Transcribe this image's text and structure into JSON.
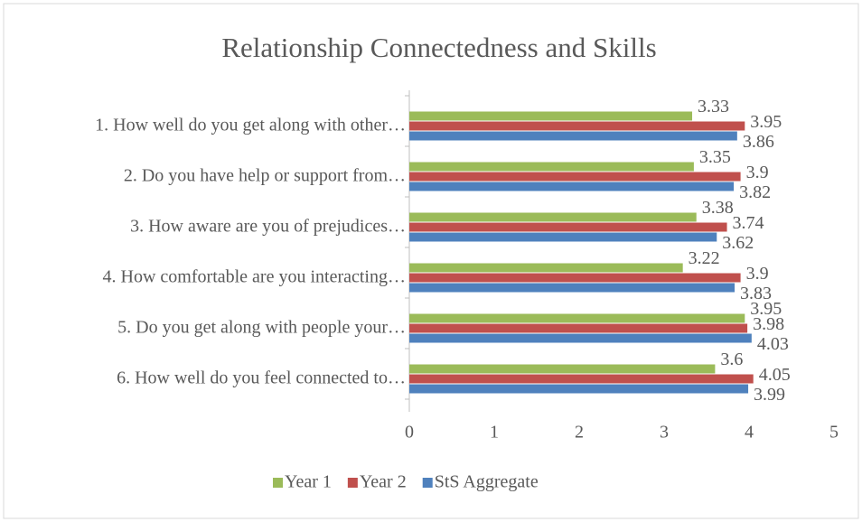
{
  "chart_data": {
    "type": "bar",
    "orientation": "horizontal",
    "title": "Relationship Connectedness and Skills",
    "categories": [
      "1. How well do you get along with other…",
      "2. Do you have help or support from…",
      "3. How aware are you of prejudices…",
      "4. How comfortable are you interacting…",
      "5. Do you get along with people your…",
      "6. How well do you feel connected to…"
    ],
    "series": [
      {
        "name": "Year 1",
        "color": "#9bbb59",
        "values": [
          3.33,
          3.35,
          3.38,
          3.22,
          3.95,
          3.6
        ]
      },
      {
        "name": "Year 2",
        "color": "#c0504d",
        "values": [
          3.95,
          3.9,
          3.74,
          3.9,
          3.98,
          4.05
        ]
      },
      {
        "name": "StS Aggregate",
        "color": "#4f81bd",
        "values": [
          3.86,
          3.82,
          3.62,
          3.83,
          4.03,
          3.99
        ]
      }
    ],
    "xlim": [
      0,
      5
    ],
    "xticks": [
      0,
      1,
      2,
      3,
      4,
      5
    ],
    "grid": false,
    "legend": "bottom"
  }
}
